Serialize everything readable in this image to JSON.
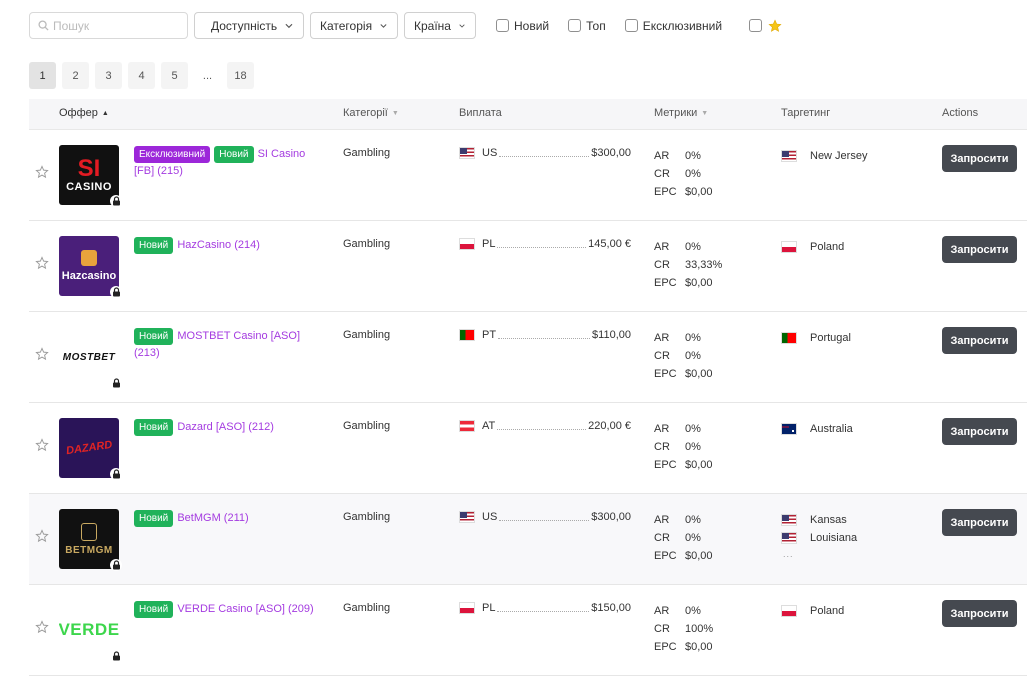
{
  "filters": {
    "search_placeholder": "Пошук",
    "availability_label": "Доступність",
    "category_label": "Категорія",
    "country_label": "Країна",
    "checkbox_new": "Новий",
    "checkbox_top": "Топ",
    "checkbox_exclusive": "Ексклюзивний"
  },
  "pagination": {
    "pages": [
      "1",
      "2",
      "3",
      "4",
      "5"
    ],
    "ellipsis": "...",
    "last": "18"
  },
  "table": {
    "columns": {
      "offer": "Оффер",
      "categories": "Категорії",
      "payout": "Виплата",
      "metrics": "Метрики",
      "targeting": "Таргетинг",
      "actions": "Actions"
    },
    "badges": {
      "exclusive": "Ексклюзивний",
      "new": "Новий"
    },
    "metric_labels": {
      "ar": "AR",
      "cr": "CR",
      "epc": "EPC"
    },
    "request_label": "Запросити",
    "rows": [
      {
        "name": "SI Casino [FB] (215)",
        "category": "Gambling",
        "payout_country": "US",
        "payout_value": "$300,00",
        "ar": "0%",
        "cr": "0%",
        "epc": "$0,00",
        "targets": [
          "New Jersey"
        ],
        "logo_text": [
          "SI",
          "CASINO"
        ]
      },
      {
        "name": "HazCasino (214)",
        "category": "Gambling",
        "payout_country": "PL",
        "payout_value": "145,00 €",
        "ar": "0%",
        "cr": "33,33%",
        "epc": "$0,00",
        "targets": [
          "Poland"
        ],
        "logo_text": [
          "Hazcasino"
        ]
      },
      {
        "name": "MOSTBET Casino [ASO] (213)",
        "category": "Gambling",
        "payout_country": "PT",
        "payout_value": "$110,00",
        "ar": "0%",
        "cr": "0%",
        "epc": "$0,00",
        "targets": [
          "Portugal"
        ],
        "logo_text": [
          "MOSTBET"
        ]
      },
      {
        "name": "Dazard [ASO] (212)",
        "category": "Gambling",
        "payout_country": "AT",
        "payout_value": "220,00 €",
        "ar": "0%",
        "cr": "0%",
        "epc": "$0,00",
        "targets": [
          "Australia"
        ],
        "logo_text": [
          "DAZARD"
        ]
      },
      {
        "name": "BetMGM (211)",
        "category": "Gambling",
        "payout_country": "US",
        "payout_value": "$300,00",
        "ar": "0%",
        "cr": "0%",
        "epc": "$0,00",
        "targets": [
          "Kansas",
          "Louisiana"
        ],
        "more": "...",
        "logo_text": [
          "BETMGM"
        ]
      },
      {
        "name": "VERDE Casino [ASO] (209)",
        "category": "Gambling",
        "payout_country": "PL",
        "payout_value": "$150,00",
        "ar": "0%",
        "cr": "100%",
        "epc": "$0,00",
        "targets": [
          "Poland"
        ],
        "logo_text": [
          "VERDE"
        ]
      }
    ]
  }
}
